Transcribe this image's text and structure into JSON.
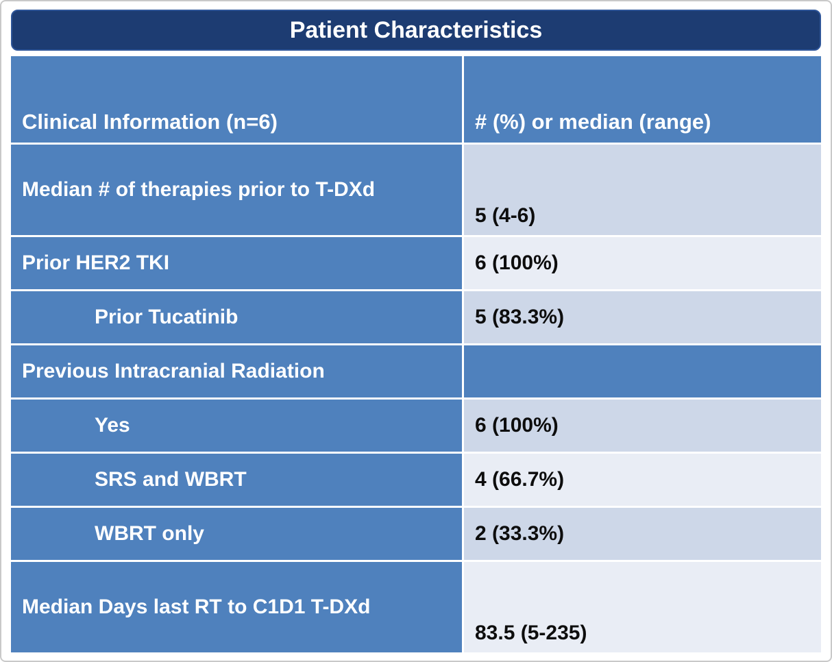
{
  "title": "Patient Characteristics",
  "colors": {
    "title_bg": "#1d3c72",
    "cell_blue": "#4f81bd",
    "band_dark": "#cdd7e8",
    "band_light": "#e9edf5",
    "label_text": "#ffffff",
    "value_text": "#0d0d0d"
  },
  "chart_data": {
    "type": "table",
    "title": "Patient Characteristics",
    "columns": [
      "Clinical Information (n=6)",
      "# (%) or median (range)"
    ],
    "rows": [
      {
        "label": "Median # of therapies prior to T-DXd",
        "value": "5 (4-6)",
        "indent": false
      },
      {
        "label": "Prior HER2 TKI",
        "value": "6 (100%)",
        "indent": false
      },
      {
        "label": "Prior Tucatinib",
        "value": "5 (83.3%)",
        "indent": true
      },
      {
        "label": "Previous Intracranial Radiation",
        "value": "",
        "indent": false
      },
      {
        "label": "Yes",
        "value": "6 (100%)",
        "indent": true
      },
      {
        "label": "SRS and WBRT",
        "value": "4 (66.7%)",
        "indent": true
      },
      {
        "label": "WBRT only",
        "value": "2 (33.3%)",
        "indent": true
      },
      {
        "label": "Median Days last RT to C1D1 T-DXd",
        "value": "83.5 (5-235)",
        "indent": false
      }
    ]
  }
}
